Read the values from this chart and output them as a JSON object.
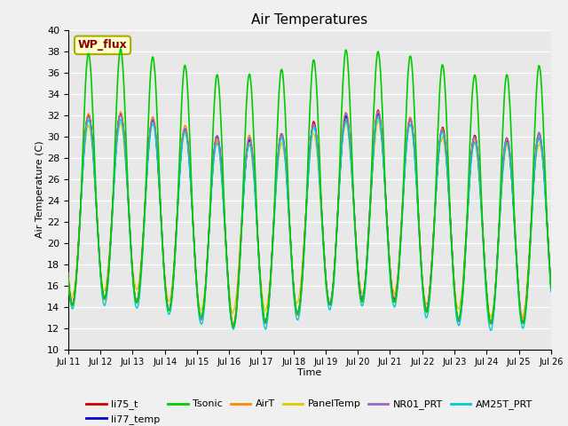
{
  "title": "Air Temperatures",
  "xlabel": "Time",
  "ylabel": "Air Temperature (C)",
  "ylim": [
    10,
    40
  ],
  "x_tick_labels": [
    "Jul 11",
    "Jul 12",
    "Jul 13",
    "Jul 14",
    "Jul 15",
    "Jul 16",
    "Jul 17",
    "Jul 18",
    "Jul 19",
    "Jul 20",
    "Jul 21",
    "Jul 22",
    "Jul 23",
    "Jul 24",
    "Jul 25",
    "Jul 26"
  ],
  "series": [
    {
      "name": "li75_t",
      "color": "#cc0000",
      "lw": 1.0,
      "zorder": 4
    },
    {
      "name": "li77_temp",
      "color": "#0000cc",
      "lw": 1.0,
      "zorder": 4
    },
    {
      "name": "Tsonic",
      "color": "#00cc00",
      "lw": 1.2,
      "zorder": 5
    },
    {
      "name": "AirT",
      "color": "#ff8800",
      "lw": 1.0,
      "zorder": 4
    },
    {
      "name": "PanelTemp",
      "color": "#ddcc00",
      "lw": 1.0,
      "zorder": 3
    },
    {
      "name": "NR01_PRT",
      "color": "#9966cc",
      "lw": 1.0,
      "zorder": 4
    },
    {
      "name": "AM25T_PRT",
      "color": "#00cccc",
      "lw": 1.0,
      "zorder": 4
    }
  ],
  "annotation_text": "WP_flux",
  "plot_bg_color": "#e8e8e8",
  "grid_color": "#ffffff",
  "legend_font_size": 8,
  "title_font_size": 11
}
